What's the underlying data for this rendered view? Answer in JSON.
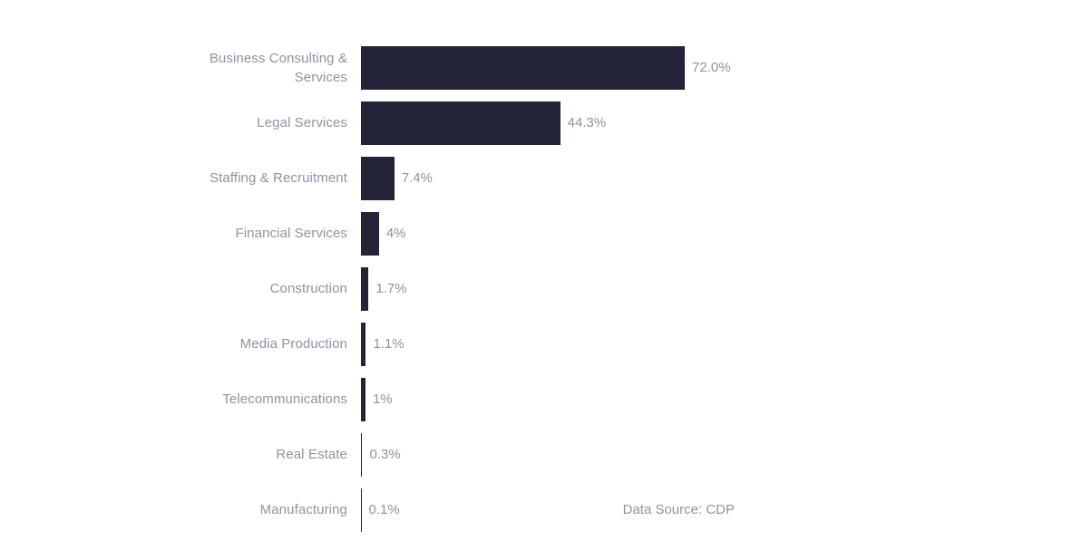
{
  "chart_data": {
    "type": "bar",
    "orientation": "horizontal",
    "title": "",
    "xlabel": "",
    "ylabel": "",
    "xlim": [
      0,
      72
    ],
    "grid": false,
    "legend": false,
    "categories": [
      "Business Consulting &\nServices",
      "Legal Services",
      "Staffing & Recruitment",
      "Financial Services",
      "Construction",
      "Media Production",
      "Telecommunications",
      "Real Estate",
      "Manufacturing"
    ],
    "values": [
      72.0,
      44.3,
      7.4,
      4,
      1.7,
      1.1,
      1,
      0.3,
      0.1
    ],
    "value_labels": [
      "72.0%",
      "44.3%",
      "7.4%",
      "4%",
      "1.7%",
      "1.1%",
      "1%",
      "0.3%",
      "0.1%"
    ],
    "source_note": "Data Source: CDP",
    "colors": {
      "bar": "#232438",
      "label_text": "#8e92a4",
      "background": "#ffffff"
    }
  }
}
